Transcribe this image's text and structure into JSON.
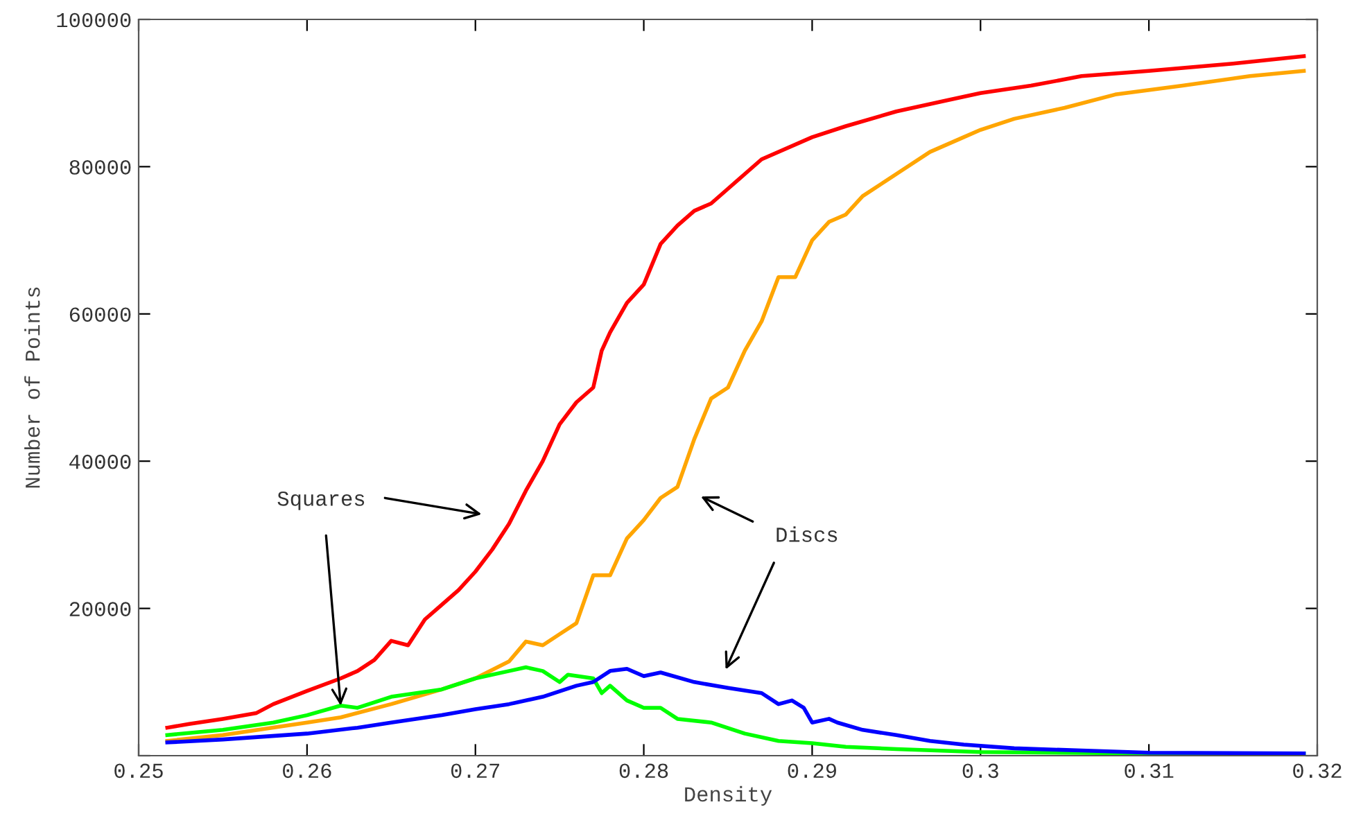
{
  "chart_data": {
    "type": "line",
    "xlabel": "Density",
    "ylabel": "Number of Points",
    "xlim": [
      0.25,
      0.32
    ],
    "ylim": [
      0,
      100000
    ],
    "xticks": [
      0.25,
      {
        "value": 0.26,
        "label": "0.26"
      },
      0.27,
      0.28,
      0.29,
      {
        "value": 0.3,
        "label": "0.3"
      },
      0.31,
      0.32
    ],
    "yticks": [
      {
        "value": 0,
        "label": null
      },
      20000,
      40000,
      60000,
      80000,
      100000
    ],
    "grid": false,
    "marker": "none",
    "line_style": "solid",
    "series": [
      {
        "color": "#ff0000",
        "x": [
          0.2517,
          0.253,
          0.255,
          0.257,
          0.258,
          0.26,
          0.262,
          0.263,
          0.264,
          0.265,
          0.266,
          0.267,
          0.268,
          0.269,
          0.27,
          0.271,
          0.272,
          0.273,
          0.274,
          0.275,
          0.276,
          0.277,
          0.2775,
          0.278,
          0.279,
          0.28,
          0.281,
          0.282,
          0.283,
          0.284,
          0.285,
          0.286,
          0.287,
          0.29,
          0.292,
          0.295,
          0.298,
          0.3,
          0.303,
          0.306,
          0.31,
          0.315,
          0.3192
        ],
        "values": [
          3800,
          4300,
          5000,
          5800,
          7000,
          8800,
          10500,
          11500,
          13000,
          15600,
          15000,
          18500,
          20500,
          22500,
          25000,
          28000,
          31500,
          36000,
          40000,
          45000,
          48000,
          50000,
          55000,
          57500,
          61500,
          64000,
          69500,
          72000,
          74000,
          75000,
          77000,
          79000,
          81000,
          84000,
          85500,
          87500,
          89000,
          90000,
          91000,
          92300,
          93000,
          94000,
          95000
        ]
      },
      {
        "color": "#ffa500",
        "x": [
          0.2517,
          0.255,
          0.26,
          0.262,
          0.265,
          0.268,
          0.27,
          0.272,
          0.273,
          0.274,
          0.275,
          0.276,
          0.277,
          0.278,
          0.279,
          0.28,
          0.281,
          0.282,
          0.283,
          0.284,
          0.285,
          0.286,
          0.287,
          0.288,
          0.289,
          0.29,
          0.291,
          0.292,
          0.293,
          0.295,
          0.297,
          0.299,
          0.3,
          0.302,
          0.305,
          0.308,
          0.312,
          0.316,
          0.3192
        ],
        "values": [
          2000,
          2800,
          4500,
          5200,
          7000,
          9000,
          10500,
          12800,
          15500,
          15000,
          16500,
          18000,
          24500,
          24500,
          29500,
          32000,
          35000,
          36500,
          43000,
          48500,
          50000,
          55000,
          59000,
          65000,
          65000,
          70000,
          72500,
          73500,
          76000,
          79000,
          82000,
          84000,
          85000,
          86500,
          88000,
          89800,
          91000,
          92300,
          93000
        ]
      },
      {
        "color": "#00ff00",
        "x": [
          0.2517,
          0.255,
          0.258,
          0.26,
          0.262,
          0.263,
          0.265,
          0.268,
          0.27,
          0.272,
          0.273,
          0.274,
          0.275,
          0.2755,
          0.277,
          0.2775,
          0.278,
          0.279,
          0.28,
          0.281,
          0.282,
          0.284,
          0.286,
          0.288,
          0.29,
          0.292,
          0.295,
          0.3,
          0.31,
          0.3192
        ],
        "values": [
          2800,
          3500,
          4500,
          5500,
          6800,
          6500,
          8000,
          9000,
          10500,
          11500,
          12000,
          11500,
          10000,
          11000,
          10500,
          8500,
          9500,
          7500,
          6500,
          6500,
          5000,
          4500,
          3000,
          2000,
          1700,
          1200,
          900,
          500,
          300,
          300
        ]
      },
      {
        "color": "#0000ff",
        "x": [
          0.2517,
          0.255,
          0.26,
          0.263,
          0.265,
          0.268,
          0.27,
          0.272,
          0.274,
          0.276,
          0.277,
          0.278,
          0.279,
          0.28,
          0.281,
          0.283,
          0.285,
          0.287,
          0.288,
          0.2888,
          0.2895,
          0.29,
          0.291,
          0.2915,
          0.293,
          0.295,
          0.297,
          0.299,
          0.302,
          0.306,
          0.31,
          0.3192
        ],
        "values": [
          1800,
          2200,
          3000,
          3800,
          4500,
          5500,
          6300,
          7000,
          8000,
          9500,
          10000,
          11500,
          11800,
          10800,
          11300,
          10000,
          9200,
          8500,
          7000,
          7500,
          6500,
          4500,
          5000,
          4500,
          3500,
          2800,
          2000,
          1500,
          1000,
          700,
          400,
          300
        ]
      }
    ],
    "annotations": [
      {
        "text": "Squares",
        "x": 0.262,
        "y": 6800
      },
      "Discs"
    ]
  }
}
